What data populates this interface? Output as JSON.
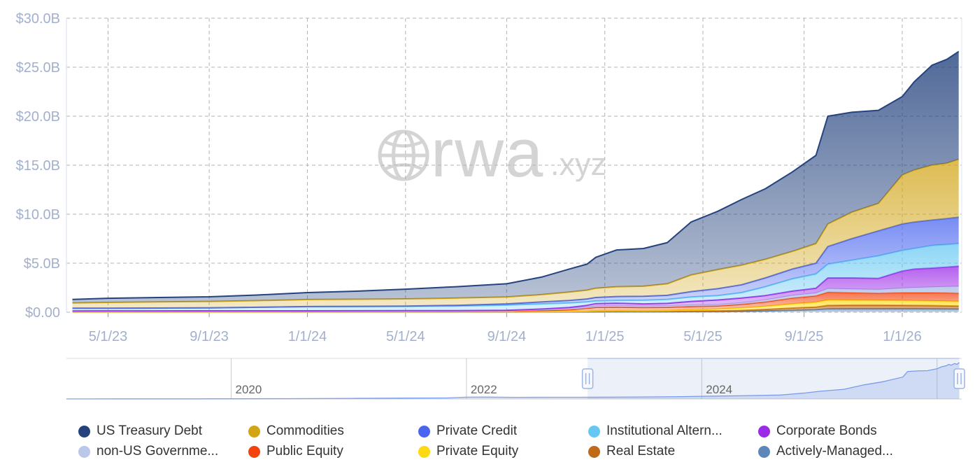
{
  "watermark": {
    "brand": "rwa",
    "suffix": ".xyz"
  },
  "chart_data": {
    "type": "area",
    "stacked": true,
    "title": "",
    "xlabel": "",
    "ylabel": "",
    "ylim": [
      0,
      30
    ],
    "grid": "dashed",
    "legend_position": "bottom",
    "y_ticks": [
      {
        "v": 30,
        "label": "$30.0B"
      },
      {
        "v": 25,
        "label": "$25.0B"
      },
      {
        "v": 20,
        "label": "$20.0B"
      },
      {
        "v": 15,
        "label": "$15.0B"
      },
      {
        "v": 10,
        "label": "$10.0B"
      },
      {
        "v": 5,
        "label": "$5.0B"
      },
      {
        "v": 0,
        "label": "$0.00"
      }
    ],
    "x_ticks": [
      {
        "t": 2023.33,
        "label": "5/1/23"
      },
      {
        "t": 2023.67,
        "label": "9/1/23"
      },
      {
        "t": 2024.0,
        "label": "1/1/24"
      },
      {
        "t": 2024.33,
        "label": "5/1/24"
      },
      {
        "t": 2024.67,
        "label": "9/1/24"
      },
      {
        "t": 2025.0,
        "label": "1/1/25"
      },
      {
        "t": 2025.33,
        "label": "5/1/25"
      },
      {
        "t": 2025.67,
        "label": "9/1/25"
      },
      {
        "t": 2026.0,
        "label": "1/1/26"
      }
    ],
    "x_unit": "decimal_year",
    "x": [
      2023.21,
      2023.33,
      2023.5,
      2023.67,
      2023.83,
      2024.0,
      2024.17,
      2024.33,
      2024.5,
      2024.67,
      2024.79,
      2024.88,
      2024.94,
      2024.97,
      2025.04,
      2025.13,
      2025.21,
      2025.29,
      2025.38,
      2025.46,
      2025.54,
      2025.63,
      2025.71,
      2025.75,
      2025.83,
      2025.92,
      2026.0,
      2026.04,
      2026.1,
      2026.15,
      2026.19
    ],
    "value_unit": "USD billions",
    "series": [
      {
        "name": "US Treasury Debt",
        "color": "#24437e",
        "values": [
          0.35,
          0.42,
          0.45,
          0.47,
          0.57,
          0.71,
          0.83,
          0.99,
          1.16,
          1.35,
          1.8,
          2.35,
          2.65,
          3.15,
          3.75,
          3.85,
          4.2,
          5.4,
          5.95,
          6.7,
          7.2,
          8.1,
          9.0,
          11.0,
          10.2,
          9.5,
          8.0,
          9.0,
          10.2,
          10.6,
          11.0
        ]
      },
      {
        "name": "Commodities",
        "color": "#d2a517",
        "values": [
          0.54,
          0.59,
          0.62,
          0.65,
          0.67,
          0.71,
          0.72,
          0.73,
          0.74,
          0.7,
          0.75,
          0.85,
          0.9,
          0.95,
          1.0,
          1.03,
          1.18,
          1.7,
          1.95,
          2.0,
          1.9,
          1.8,
          2.0,
          2.3,
          2.7,
          2.8,
          5.0,
          5.3,
          5.6,
          5.65,
          5.9
        ]
      },
      {
        "name": "Private Credit",
        "color": "#4a66f0",
        "values": [
          0.01,
          0.01,
          0.01,
          0.01,
          0.01,
          0.01,
          0.02,
          0.03,
          0.07,
          0.13,
          0.2,
          0.25,
          0.3,
          0.35,
          0.4,
          0.4,
          0.42,
          0.55,
          0.7,
          0.8,
          0.9,
          1.0,
          1.1,
          1.8,
          2.2,
          2.55,
          2.7,
          2.7,
          2.6,
          2.65,
          2.7
        ]
      },
      {
        "name": "Institutional Altern...",
        "color": "#66c8f2",
        "values": [
          0.27,
          0.265,
          0.285,
          0.3,
          0.36,
          0.425,
          0.43,
          0.445,
          0.47,
          0.53,
          0.52,
          0.47,
          0.35,
          0.27,
          0.28,
          0.37,
          0.4,
          0.45,
          0.45,
          0.55,
          0.9,
          1.25,
          1.45,
          1.4,
          1.8,
          2.3,
          2.1,
          2.1,
          2.3,
          2.3,
          2.3
        ]
      },
      {
        "name": "Corporate Bonds",
        "color": "#9c2be8",
        "values": [
          0.005,
          0.005,
          0.005,
          0.005,
          0.005,
          0.005,
          0.01,
          0.01,
          0.01,
          0.02,
          0.05,
          0.1,
          0.18,
          0.25,
          0.26,
          0.23,
          0.25,
          0.38,
          0.47,
          0.5,
          0.45,
          0.45,
          0.5,
          1.1,
          1.15,
          1.15,
          1.75,
          1.9,
          1.95,
          2.0,
          2.08
        ]
      },
      {
        "name": "non-US Governme...",
        "color": "#bac7e8",
        "values": [
          0.015,
          0.015,
          0.015,
          0.015,
          0.015,
          0.02,
          0.02,
          0.02,
          0.02,
          0.03,
          0.1,
          0.13,
          0.12,
          0.13,
          0.14,
          0.14,
          0.15,
          0.14,
          0.14,
          0.15,
          0.2,
          0.25,
          0.27,
          0.35,
          0.35,
          0.35,
          0.45,
          0.5,
          0.55,
          0.62,
          0.67
        ]
      },
      {
        "name": "Public Equity",
        "color": "#f4420c",
        "values": [
          0.075,
          0.08,
          0.08,
          0.085,
          0.085,
          0.08,
          0.08,
          0.085,
          0.085,
          0.09,
          0.12,
          0.18,
          0.3,
          0.35,
          0.35,
          0.32,
          0.32,
          0.33,
          0.32,
          0.35,
          0.45,
          0.6,
          0.66,
          0.8,
          0.76,
          0.73,
          0.8,
          0.82,
          0.85,
          0.86,
          0.85
        ]
      },
      {
        "name": "Private Equity",
        "color": "#fcd913",
        "values": [
          0.005,
          0.005,
          0.005,
          0.005,
          0.005,
          0.005,
          0.005,
          0.005,
          0.005,
          0.01,
          0.015,
          0.02,
          0.045,
          0.09,
          0.1,
          0.09,
          0.1,
          0.15,
          0.19,
          0.27,
          0.32,
          0.43,
          0.5,
          0.55,
          0.52,
          0.5,
          0.49,
          0.48,
          0.47,
          0.47,
          0.47
        ]
      },
      {
        "name": "Real Estate",
        "color": "#c06a15",
        "values": [
          0.015,
          0.015,
          0.015,
          0.015,
          0.015,
          0.015,
          0.015,
          0.015,
          0.02,
          0.02,
          0.02,
          0.02,
          0.025,
          0.025,
          0.03,
          0.03,
          0.035,
          0.05,
          0.07,
          0.1,
          0.16,
          0.22,
          0.26,
          0.35,
          0.36,
          0.36,
          0.35,
          0.34,
          0.33,
          0.31,
          0.3
        ]
      },
      {
        "name": "Actively-Managed...",
        "color": "#5d87b9",
        "values": [
          0.015,
          0.015,
          0.015,
          0.015,
          0.015,
          0.02,
          0.02,
          0.02,
          0.02,
          0.02,
          0.025,
          0.03,
          0.03,
          0.035,
          0.04,
          0.04,
          0.045,
          0.05,
          0.06,
          0.08,
          0.12,
          0.2,
          0.26,
          0.35,
          0.36,
          0.36,
          0.36,
          0.36,
          0.35,
          0.34,
          0.33
        ]
      }
    ],
    "stack_order": "last series at bottom, first series on top",
    "navigator": {
      "x_start": 2018.6,
      "x_end": 2026.21,
      "year_gridlines": [
        2020,
        2022,
        2024,
        2026
      ],
      "year_labels": [
        {
          "t": 2020,
          "label": "2020"
        },
        {
          "t": 2022,
          "label": "2022"
        },
        {
          "t": 2024,
          "label": "2024"
        }
      ],
      "selection": {
        "from": 2023.03,
        "to": 2026.19
      },
      "series_total": [
        [
          2018.6,
          0.05
        ],
        [
          2019.0,
          0.08
        ],
        [
          2019.5,
          0.1
        ],
        [
          2020.0,
          0.15
        ],
        [
          2020.5,
          0.28
        ],
        [
          2021.0,
          0.45
        ],
        [
          2021.5,
          0.65
        ],
        [
          2021.83,
          0.75
        ],
        [
          2021.92,
          1.05
        ],
        [
          2022.0,
          1.3
        ],
        [
          2022.17,
          1.35
        ],
        [
          2022.42,
          1.22
        ],
        [
          2022.75,
          1.25
        ],
        [
          2023.0,
          1.28
        ],
        [
          2023.21,
          1.3
        ],
        [
          2023.5,
          1.5
        ],
        [
          2023.83,
          1.75
        ],
        [
          2024.0,
          2.0
        ],
        [
          2024.33,
          2.35
        ],
        [
          2024.67,
          2.9
        ],
        [
          2024.88,
          4.4
        ],
        [
          2025.0,
          5.6
        ],
        [
          2025.21,
          7.1
        ],
        [
          2025.38,
          10.3
        ],
        [
          2025.54,
          12.6
        ],
        [
          2025.71,
          16.0
        ],
        [
          2025.75,
          20.0
        ],
        [
          2025.83,
          20.4
        ],
        [
          2025.92,
          20.6
        ],
        [
          2026.0,
          22.0
        ],
        [
          2026.04,
          23.5
        ],
        [
          2026.08,
          24.2
        ],
        [
          2026.1,
          25.2
        ],
        [
          2026.12,
          24.6
        ],
        [
          2026.15,
          25.8
        ],
        [
          2026.17,
          25.2
        ],
        [
          2026.19,
          26.6
        ]
      ]
    }
  },
  "style": {
    "axis_label_color": "#a2b0cd",
    "grid_color": "#b3b3b3",
    "watermark_color": "#d4d4d4",
    "navigator_line_color": "#7f9ff0",
    "navigator_mask_color": "rgba(102,133,194,0.12)",
    "handle_border_color": "#9db4e3",
    "legend_text_color": "#333333"
  }
}
